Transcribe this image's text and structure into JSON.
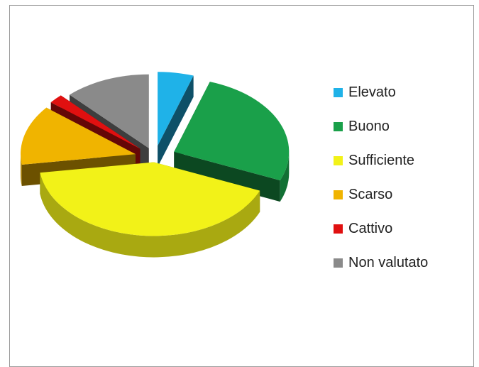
{
  "chart_data": {
    "type": "pie",
    "style": "3d-exploded",
    "title": "",
    "categories": [
      "Elevato",
      "Buono",
      "Sufficiente",
      "Scarso",
      "Cattivo",
      "Non valutato"
    ],
    "values": [
      5,
      26,
      41,
      13,
      2,
      12
    ],
    "unit": "%",
    "colors": {
      "Elevato": "#1fb2e8",
      "Buono": "#1aa04a",
      "Sufficiente": "#f2f218",
      "Scarso": "#f0b400",
      "Cattivo": "#e01010",
      "Non valutato": "#8a8a8a"
    },
    "legend_position": "right",
    "grid": false
  },
  "legend": {
    "items": [
      {
        "label": "Elevato",
        "color": "#1fb2e8"
      },
      {
        "label": "Buono",
        "color": "#1aa04a"
      },
      {
        "label": "Sufficiente",
        "color": "#f2f218"
      },
      {
        "label": "Scarso",
        "color": "#f0b400"
      },
      {
        "label": "Cattivo",
        "color": "#e01010"
      },
      {
        "label": "Non valutato",
        "color": "#8a8a8a"
      }
    ]
  }
}
